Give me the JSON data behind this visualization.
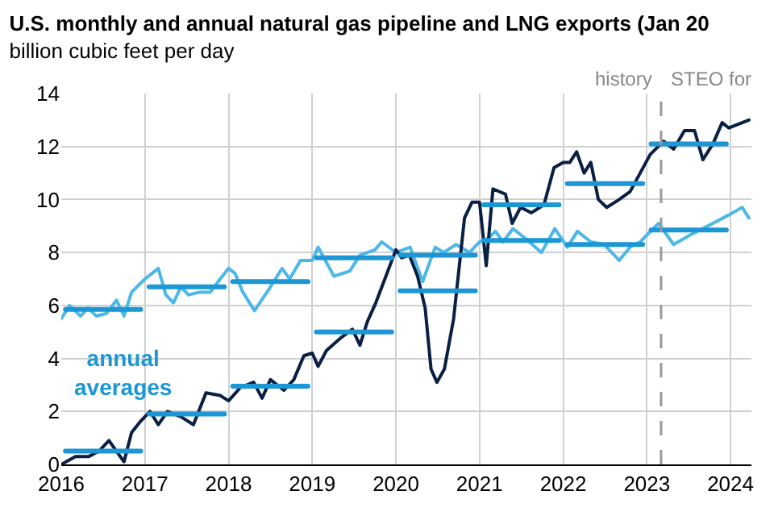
{
  "chart_data": {
    "type": "line",
    "title": "U.S. monthly and annual natural gas pipeline and LNG exports (Jan 20",
    "subtitle": "billion cubic feet per day",
    "series": [
      {
        "color": "#4cb8e8",
        "x": [
          2016.0,
          2016.1,
          2016.23,
          2016.32,
          2016.42,
          2016.54,
          2016.66,
          2016.75,
          2016.84,
          2017.0,
          2017.16,
          2017.25,
          2017.34,
          2017.43,
          2017.52,
          2017.65,
          2017.78,
          2017.9,
          2018.0,
          2018.08,
          2018.17,
          2018.31,
          2018.48,
          2018.64,
          2018.73,
          2018.86,
          2019.0,
          2019.07,
          2019.26,
          2019.45,
          2019.57,
          2019.75,
          2019.83,
          2020.0,
          2020.17,
          2020.32,
          2020.47,
          2020.57,
          2020.72,
          2020.88,
          2021.0,
          2021.09,
          2021.19,
          2021.28,
          2021.4,
          2021.56,
          2021.74,
          2021.9,
          2022.05,
          2022.17,
          2022.33,
          2022.49,
          2022.67,
          2022.8,
          2022.92,
          2023.14,
          2023.32,
          2023.54,
          2023.79,
          2023.97,
          2024.14,
          2024.22
        ],
        "values": [
          5.5,
          6.0,
          5.6,
          5.9,
          5.6,
          5.7,
          6.2,
          5.6,
          6.5,
          7.0,
          7.4,
          6.4,
          6.1,
          6.7,
          6.4,
          6.5,
          6.5,
          7.0,
          7.4,
          7.2,
          6.5,
          5.8,
          6.6,
          7.4,
          7.0,
          7.7,
          7.7,
          8.2,
          7.1,
          7.3,
          7.9,
          8.1,
          8.4,
          8.0,
          8.2,
          6.9,
          8.2,
          8.0,
          8.3,
          8.0,
          8.4,
          8.5,
          8.8,
          8.4,
          8.9,
          8.5,
          8.0,
          8.9,
          8.2,
          8.8,
          8.4,
          8.3,
          7.7,
          8.2,
          8.4,
          9.1,
          8.3,
          8.7,
          9.1,
          9.4,
          9.7,
          9.3
        ]
      },
      {
        "color": "#0a1f44",
        "x": [
          2016.0,
          2016.17,
          2016.33,
          2016.45,
          2016.57,
          2016.66,
          2016.75,
          2016.84,
          2016.94,
          2017.06,
          2017.16,
          2017.27,
          2017.43,
          2017.58,
          2017.73,
          2017.9,
          2018.0,
          2018.14,
          2018.3,
          2018.4,
          2018.5,
          2018.66,
          2018.78,
          2018.9,
          2019.0,
          2019.07,
          2019.17,
          2019.35,
          2019.48,
          2019.57,
          2019.66,
          2019.76,
          2019.88,
          2020.0,
          2020.07,
          2020.16,
          2020.26,
          2020.35,
          2020.42,
          2020.49,
          2020.58,
          2020.69,
          2020.82,
          2020.91,
          2021.0,
          2021.08,
          2021.16,
          2021.31,
          2021.39,
          2021.49,
          2021.62,
          2021.77,
          2021.89,
          2022.0,
          2022.08,
          2022.16,
          2022.25,
          2022.33,
          2022.42,
          2022.52,
          2022.67,
          2022.8,
          2022.92,
          2023.04,
          2023.2,
          2023.32,
          2023.45,
          2023.57,
          2023.67,
          2023.79,
          2023.9,
          2023.98,
          2024.22
        ],
        "values": [
          0.0,
          0.3,
          0.3,
          0.5,
          0.9,
          0.5,
          0.1,
          1.2,
          1.6,
          2.0,
          1.5,
          2.0,
          1.8,
          1.5,
          2.7,
          2.6,
          2.4,
          2.9,
          3.1,
          2.5,
          3.2,
          2.8,
          3.2,
          4.1,
          4.2,
          3.7,
          4.3,
          4.8,
          5.1,
          4.5,
          5.4,
          6.1,
          7.1,
          8.1,
          7.8,
          7.9,
          7.1,
          5.9,
          3.6,
          3.1,
          3.6,
          5.5,
          9.3,
          9.9,
          9.9,
          7.5,
          10.4,
          10.2,
          9.1,
          9.7,
          9.5,
          9.8,
          11.2,
          11.4,
          11.4,
          11.8,
          11.0,
          11.4,
          10.0,
          9.7,
          10.0,
          10.3,
          11.0,
          11.7,
          12.2,
          11.9,
          12.6,
          12.6,
          11.5,
          12.1,
          12.9,
          12.7,
          13.0
        ]
      },
      {
        "color": "#1c97d4",
        "x": [
          2016.05,
          2016.95,
          2017.0,
          2017.05,
          2017.95,
          2018.0,
          2018.05,
          2018.95,
          2019.0,
          2019.05,
          2019.95,
          2020.0,
          2020.05,
          2020.95,
          2021.0,
          2021.05,
          2021.95,
          2022.0,
          2022.05,
          2022.95,
          2023.0,
          2023.05,
          2023.95
        ],
        "values": [
          5.85,
          5.85,
          null,
          6.7,
          6.7,
          null,
          6.9,
          6.9,
          null,
          7.8,
          7.8,
          null,
          7.9,
          7.9,
          null,
          8.45,
          8.45,
          null,
          8.3,
          8.3,
          null,
          8.85,
          8.85
        ]
      },
      {
        "color": "#1c97d4",
        "x": [
          2016.05,
          2016.95,
          2017.0,
          2017.05,
          2017.95,
          2018.0,
          2018.05,
          2018.95,
          2019.0,
          2019.05,
          2019.95,
          2020.0,
          2020.05,
          2020.95,
          2021.0,
          2021.05,
          2021.95,
          2022.0,
          2022.05,
          2022.95,
          2023.0,
          2023.05,
          2023.95
        ],
        "values": [
          0.5,
          0.5,
          null,
          1.9,
          1.9,
          null,
          2.95,
          2.95,
          null,
          5.0,
          5.0,
          null,
          6.55,
          6.55,
          null,
          9.8,
          9.8,
          null,
          10.6,
          10.6,
          null,
          12.1,
          12.1
        ]
      }
    ],
    "xlim": [
      2016,
      2024.25
    ],
    "xticks": [
      2016,
      2017,
      2018,
      2019,
      2020,
      2021,
      2022,
      2023,
      2024
    ],
    "ylim": [
      0,
      14
    ],
    "yticks": [
      0,
      2,
      4,
      6,
      8,
      10,
      12,
      14
    ],
    "grid": true,
    "marker": "none",
    "line_style": "solid",
    "ref_lines": [
      {
        "axis": "x",
        "value": 2023.17,
        "label": "history",
        "color": "#999999",
        "line_style": "dashed"
      }
    ],
    "annotations": [
      "annual averages",
      "STEO for"
    ]
  }
}
